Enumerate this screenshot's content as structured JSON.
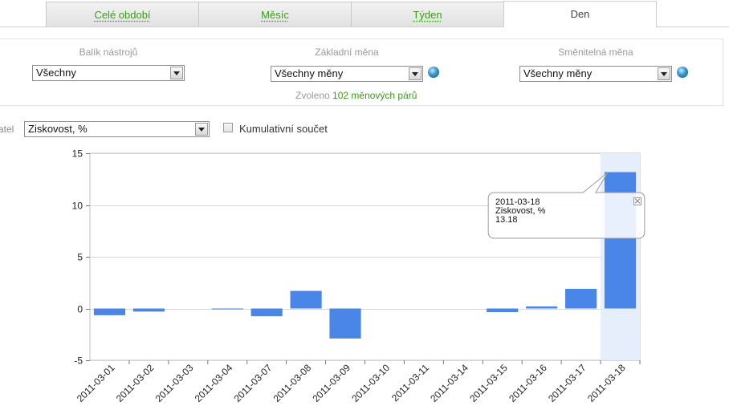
{
  "tabs": [
    {
      "label": "Celé období",
      "active": false
    },
    {
      "label": "Měsíc",
      "active": false
    },
    {
      "label": "Týden",
      "active": false
    },
    {
      "label": "Den",
      "active": true
    }
  ],
  "filters": {
    "toolkit": {
      "label": "Balík nástrojů",
      "value": "Všechny"
    },
    "base_currency": {
      "label": "Základní měna",
      "value": "Všechny měny",
      "icon": "globe-icon"
    },
    "quote_currency": {
      "label": "Směnitelná měna",
      "value": "Všechny měny",
      "icon": "globe-icon"
    },
    "selected_prefix": "Zvoleno",
    "selected_count": "102 měnových párů"
  },
  "indicator": {
    "label": "atel",
    "value": "Ziskovost, %",
    "cumulative_label": "Kumulativní součet",
    "cumulative_checked": false
  },
  "chart_data": {
    "type": "bar",
    "categories": [
      "2011-03-01",
      "2011-03-02",
      "2011-03-03",
      "2011-03-04",
      "2011-03-07",
      "2011-03-08",
      "2011-03-09",
      "2011-03-10",
      "2011-03-11",
      "2011-03-14",
      "2011-03-15",
      "2011-03-16",
      "2011-03-17",
      "2011-03-18"
    ],
    "values": [
      -0.65,
      -0.3,
      0,
      -0.05,
      -0.75,
      1.7,
      -2.9,
      0,
      0,
      0,
      -0.35,
      0.2,
      1.9,
      13.18
    ],
    "ylim": [
      -5,
      15
    ],
    "yticks": [
      -5,
      0,
      5,
      10,
      15
    ],
    "grid": true,
    "bar_color": "#4a86e8",
    "highlight_color": "#e6eefc"
  },
  "tooltip": {
    "date": "2011-03-18",
    "series": "Ziskovost, %",
    "value": "13.18"
  }
}
